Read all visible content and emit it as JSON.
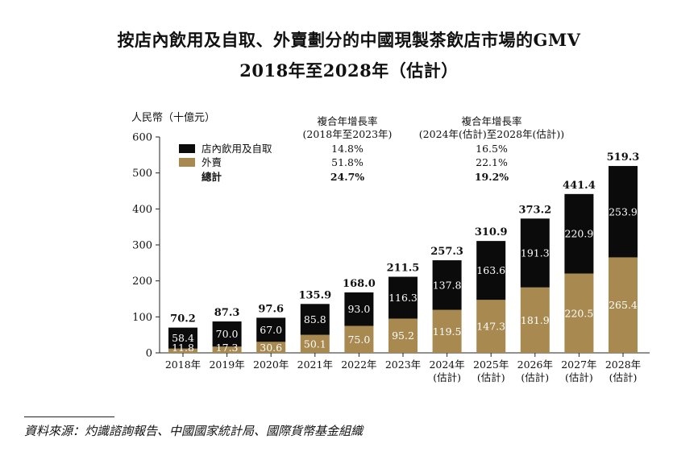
{
  "title_line1": "按店內飲用及自取、外賣劃分的中國現製茶飲店市場的GMV",
  "title_line2": "2018年至2028年（估計）",
  "source": "資料來源：灼識諮詢報告、中國國家統計局、國際貨幣基金組織",
  "colors": {
    "in_store": "#0b0b0b",
    "delivery": "#a8894f",
    "axis": "#222222"
  },
  "legend": [
    {
      "name": "店內飲用及自取",
      "color": "#0b0b0b"
    },
    {
      "name": "外賣",
      "color": "#a8894f"
    },
    {
      "name": "總計"
    }
  ],
  "cagr_table": {
    "col1_header": [
      "複合年增長率",
      "(2018年至2023年)"
    ],
    "col2_header": [
      "複合年增長率",
      "(2024年(估計)至2028年(估計))"
    ],
    "col1_values": [
      "14.8%",
      "51.8%",
      "24.7%"
    ],
    "col2_values": [
      "16.5%",
      "22.1%",
      "19.2%"
    ]
  },
  "chart_data": {
    "type": "bar",
    "stacked": true,
    "ylabel": "人民幣（十億元）",
    "ylim": [
      0,
      600
    ],
    "yticks": [
      0,
      100,
      200,
      300,
      400,
      500,
      600
    ],
    "categories": [
      [
        "2018年"
      ],
      [
        "2019年"
      ],
      [
        "2020年"
      ],
      [
        "2021年"
      ],
      [
        "2022年"
      ],
      [
        "2023年"
      ],
      [
        "2024年",
        "(估計)"
      ],
      [
        "2025年",
        "(估計)"
      ],
      [
        "2026年",
        "(估計)"
      ],
      [
        "2027年",
        "(估計)"
      ],
      [
        "2028年",
        "(估計)"
      ]
    ],
    "series": [
      {
        "name": "外賣",
        "values": [
          11.8,
          17.3,
          30.6,
          50.1,
          75.0,
          95.2,
          119.5,
          147.3,
          181.9,
          220.5,
          265.4
        ]
      },
      {
        "name": "店內飲用及自取",
        "values": [
          58.4,
          70.0,
          67.0,
          85.8,
          93.0,
          116.3,
          137.8,
          163.6,
          191.3,
          220.9,
          253.9
        ]
      }
    ],
    "totals": [
      70.2,
      87.3,
      97.6,
      135.9,
      168.0,
      211.5,
      257.3,
      310.9,
      373.2,
      441.4,
      519.3
    ],
    "grid": false,
    "legend_position": "top-left"
  }
}
